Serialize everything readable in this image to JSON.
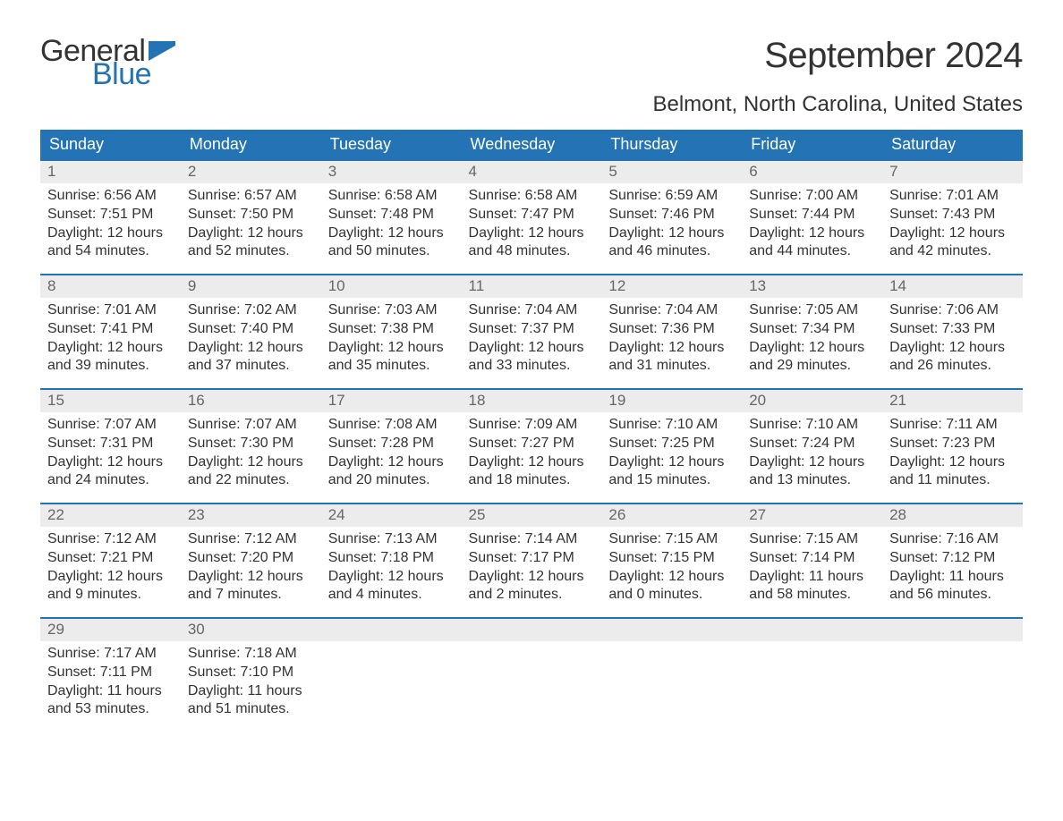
{
  "logo": {
    "word1": "General",
    "word2": "Blue",
    "flag_color": "#2373b5"
  },
  "title": "September 2024",
  "location": "Belmont, North Carolina, United States",
  "colors": {
    "header_bg": "#2373b5",
    "header_text": "#ffffff",
    "daynum_bg": "#ececec",
    "daynum_text": "#666666",
    "body_text": "#333333",
    "week_border": "#2373b5",
    "page_bg": "#ffffff"
  },
  "fonts": {
    "title_size": 40,
    "location_size": 24,
    "header_size": 18,
    "daynum_size": 17,
    "body_size": 16
  },
  "weekdays": [
    "Sunday",
    "Monday",
    "Tuesday",
    "Wednesday",
    "Thursday",
    "Friday",
    "Saturday"
  ],
  "weeks": [
    [
      {
        "num": "1",
        "sunrise": "Sunrise: 6:56 AM",
        "sunset": "Sunset: 7:51 PM",
        "day1": "Daylight: 12 hours",
        "day2": "and 54 minutes."
      },
      {
        "num": "2",
        "sunrise": "Sunrise: 6:57 AM",
        "sunset": "Sunset: 7:50 PM",
        "day1": "Daylight: 12 hours",
        "day2": "and 52 minutes."
      },
      {
        "num": "3",
        "sunrise": "Sunrise: 6:58 AM",
        "sunset": "Sunset: 7:48 PM",
        "day1": "Daylight: 12 hours",
        "day2": "and 50 minutes."
      },
      {
        "num": "4",
        "sunrise": "Sunrise: 6:58 AM",
        "sunset": "Sunset: 7:47 PM",
        "day1": "Daylight: 12 hours",
        "day2": "and 48 minutes."
      },
      {
        "num": "5",
        "sunrise": "Sunrise: 6:59 AM",
        "sunset": "Sunset: 7:46 PM",
        "day1": "Daylight: 12 hours",
        "day2": "and 46 minutes."
      },
      {
        "num": "6",
        "sunrise": "Sunrise: 7:00 AM",
        "sunset": "Sunset: 7:44 PM",
        "day1": "Daylight: 12 hours",
        "day2": "and 44 minutes."
      },
      {
        "num": "7",
        "sunrise": "Sunrise: 7:01 AM",
        "sunset": "Sunset: 7:43 PM",
        "day1": "Daylight: 12 hours",
        "day2": "and 42 minutes."
      }
    ],
    [
      {
        "num": "8",
        "sunrise": "Sunrise: 7:01 AM",
        "sunset": "Sunset: 7:41 PM",
        "day1": "Daylight: 12 hours",
        "day2": "and 39 minutes."
      },
      {
        "num": "9",
        "sunrise": "Sunrise: 7:02 AM",
        "sunset": "Sunset: 7:40 PM",
        "day1": "Daylight: 12 hours",
        "day2": "and 37 minutes."
      },
      {
        "num": "10",
        "sunrise": "Sunrise: 7:03 AM",
        "sunset": "Sunset: 7:38 PM",
        "day1": "Daylight: 12 hours",
        "day2": "and 35 minutes."
      },
      {
        "num": "11",
        "sunrise": "Sunrise: 7:04 AM",
        "sunset": "Sunset: 7:37 PM",
        "day1": "Daylight: 12 hours",
        "day2": "and 33 minutes."
      },
      {
        "num": "12",
        "sunrise": "Sunrise: 7:04 AM",
        "sunset": "Sunset: 7:36 PM",
        "day1": "Daylight: 12 hours",
        "day2": "and 31 minutes."
      },
      {
        "num": "13",
        "sunrise": "Sunrise: 7:05 AM",
        "sunset": "Sunset: 7:34 PM",
        "day1": "Daylight: 12 hours",
        "day2": "and 29 minutes."
      },
      {
        "num": "14",
        "sunrise": "Sunrise: 7:06 AM",
        "sunset": "Sunset: 7:33 PM",
        "day1": "Daylight: 12 hours",
        "day2": "and 26 minutes."
      }
    ],
    [
      {
        "num": "15",
        "sunrise": "Sunrise: 7:07 AM",
        "sunset": "Sunset: 7:31 PM",
        "day1": "Daylight: 12 hours",
        "day2": "and 24 minutes."
      },
      {
        "num": "16",
        "sunrise": "Sunrise: 7:07 AM",
        "sunset": "Sunset: 7:30 PM",
        "day1": "Daylight: 12 hours",
        "day2": "and 22 minutes."
      },
      {
        "num": "17",
        "sunrise": "Sunrise: 7:08 AM",
        "sunset": "Sunset: 7:28 PM",
        "day1": "Daylight: 12 hours",
        "day2": "and 20 minutes."
      },
      {
        "num": "18",
        "sunrise": "Sunrise: 7:09 AM",
        "sunset": "Sunset: 7:27 PM",
        "day1": "Daylight: 12 hours",
        "day2": "and 18 minutes."
      },
      {
        "num": "19",
        "sunrise": "Sunrise: 7:10 AM",
        "sunset": "Sunset: 7:25 PM",
        "day1": "Daylight: 12 hours",
        "day2": "and 15 minutes."
      },
      {
        "num": "20",
        "sunrise": "Sunrise: 7:10 AM",
        "sunset": "Sunset: 7:24 PM",
        "day1": "Daylight: 12 hours",
        "day2": "and 13 minutes."
      },
      {
        "num": "21",
        "sunrise": "Sunrise: 7:11 AM",
        "sunset": "Sunset: 7:23 PM",
        "day1": "Daylight: 12 hours",
        "day2": "and 11 minutes."
      }
    ],
    [
      {
        "num": "22",
        "sunrise": "Sunrise: 7:12 AM",
        "sunset": "Sunset: 7:21 PM",
        "day1": "Daylight: 12 hours",
        "day2": "and 9 minutes."
      },
      {
        "num": "23",
        "sunrise": "Sunrise: 7:12 AM",
        "sunset": "Sunset: 7:20 PM",
        "day1": "Daylight: 12 hours",
        "day2": "and 7 minutes."
      },
      {
        "num": "24",
        "sunrise": "Sunrise: 7:13 AM",
        "sunset": "Sunset: 7:18 PM",
        "day1": "Daylight: 12 hours",
        "day2": "and 4 minutes."
      },
      {
        "num": "25",
        "sunrise": "Sunrise: 7:14 AM",
        "sunset": "Sunset: 7:17 PM",
        "day1": "Daylight: 12 hours",
        "day2": "and 2 minutes."
      },
      {
        "num": "26",
        "sunrise": "Sunrise: 7:15 AM",
        "sunset": "Sunset: 7:15 PM",
        "day1": "Daylight: 12 hours",
        "day2": "and 0 minutes."
      },
      {
        "num": "27",
        "sunrise": "Sunrise: 7:15 AM",
        "sunset": "Sunset: 7:14 PM",
        "day1": "Daylight: 11 hours",
        "day2": "and 58 minutes."
      },
      {
        "num": "28",
        "sunrise": "Sunrise: 7:16 AM",
        "sunset": "Sunset: 7:12 PM",
        "day1": "Daylight: 11 hours",
        "day2": "and 56 minutes."
      }
    ],
    [
      {
        "num": "29",
        "sunrise": "Sunrise: 7:17 AM",
        "sunset": "Sunset: 7:11 PM",
        "day1": "Daylight: 11 hours",
        "day2": "and 53 minutes."
      },
      {
        "num": "30",
        "sunrise": "Sunrise: 7:18 AM",
        "sunset": "Sunset: 7:10 PM",
        "day1": "Daylight: 11 hours",
        "day2": "and 51 minutes."
      },
      null,
      null,
      null,
      null,
      null
    ]
  ]
}
